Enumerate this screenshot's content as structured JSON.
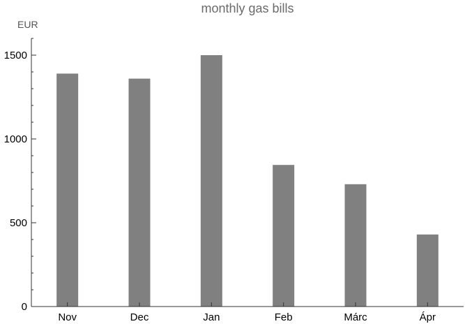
{
  "chart_data": {
    "type": "bar",
    "title": "monthly gas bills",
    "ylabel": "EUR",
    "xlabel": "",
    "categories": [
      "Nov",
      "Dec",
      "Jan",
      "Feb",
      "Márc",
      "Ápr"
    ],
    "values": [
      1390,
      1360,
      1500,
      845,
      730,
      430
    ],
    "ylim": [
      0,
      1600
    ],
    "yticks": [
      0,
      500,
      1000,
      1500
    ],
    "y_minor_step": 100,
    "grid": false,
    "legend": "none",
    "bar_color": "#808080"
  }
}
